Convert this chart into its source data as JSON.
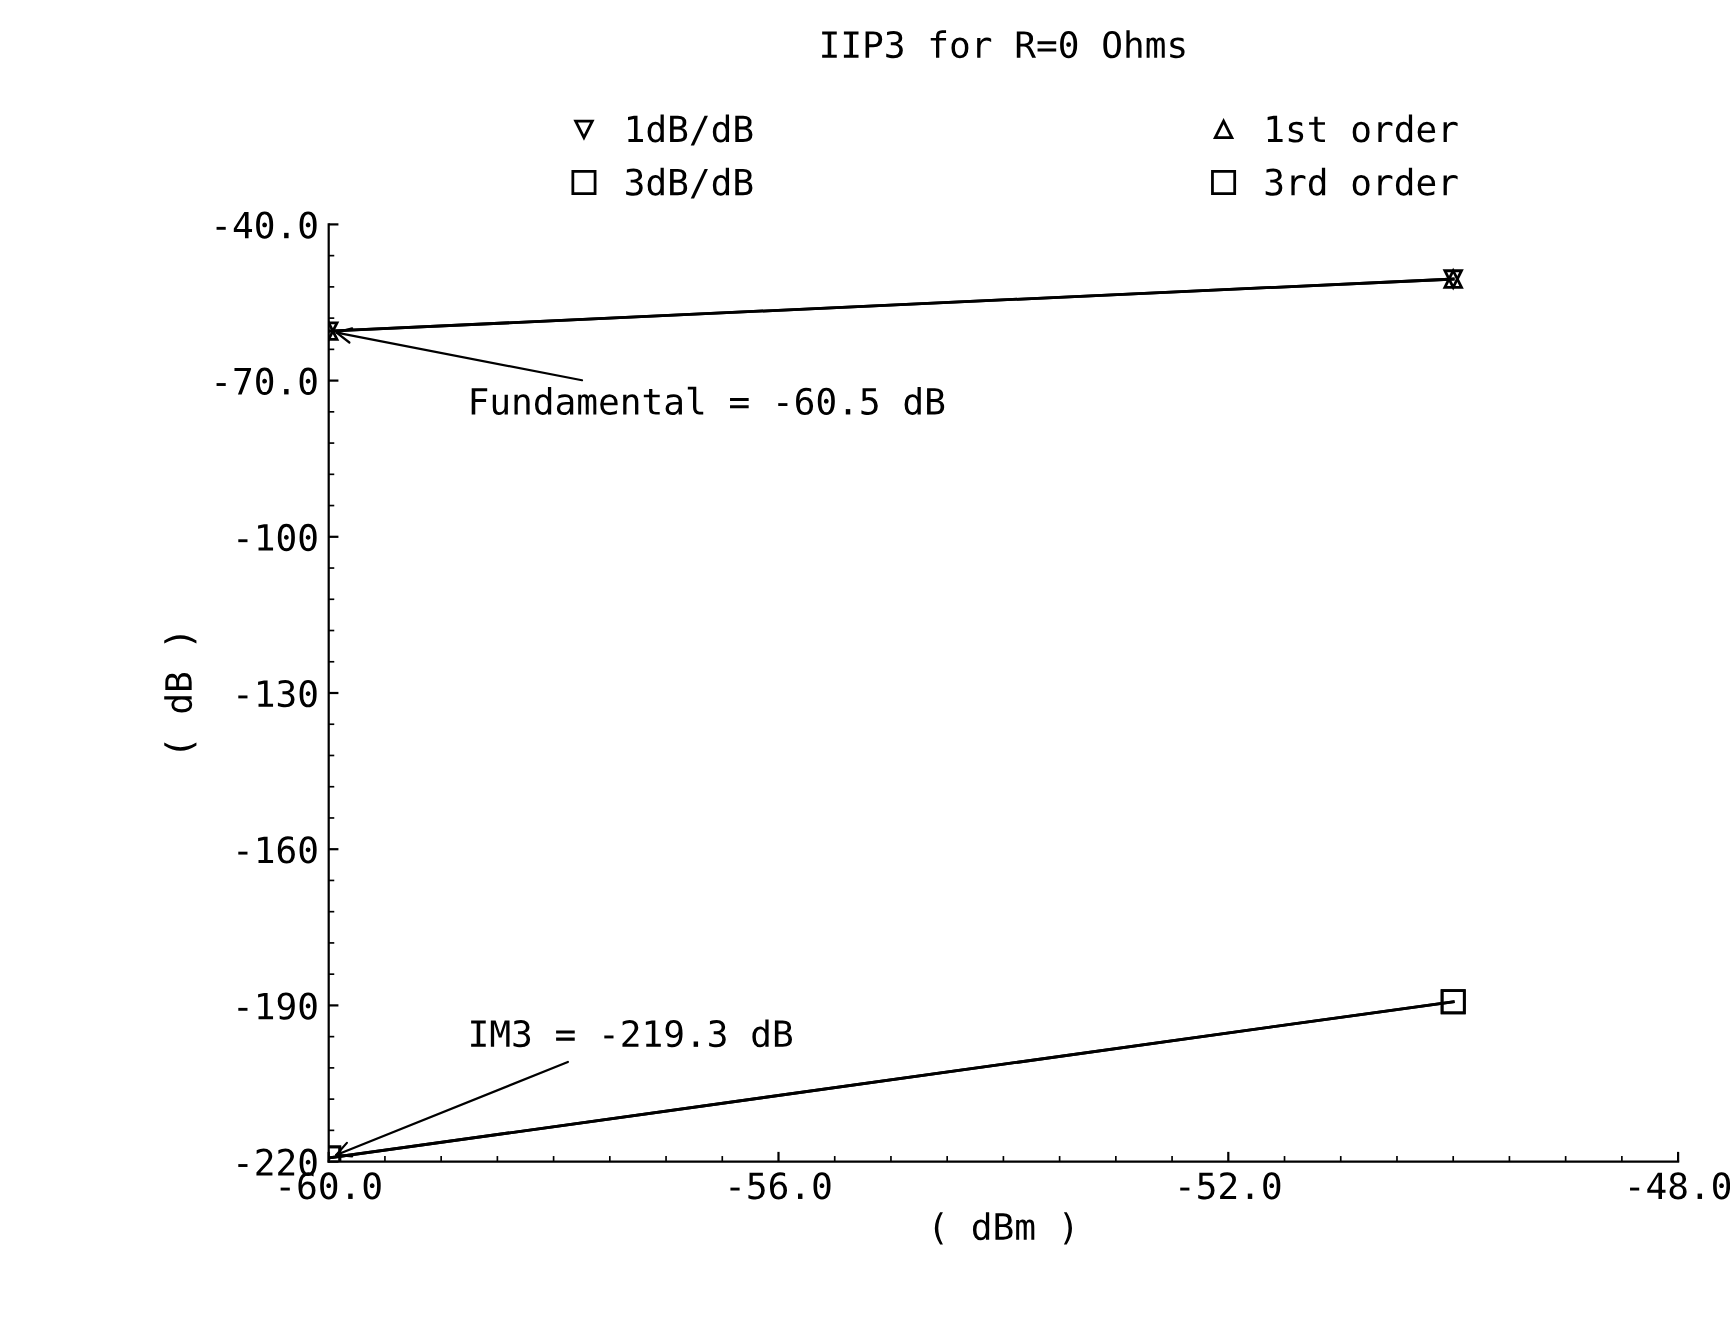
{
  "chart_data": {
    "type": "line",
    "title": "IIP3 for R=0 Ohms",
    "xlabel": "( dBm )",
    "ylabel": "( dB )",
    "x": [
      -60,
      -50
    ],
    "series": [
      {
        "name": "1dB/dB",
        "color": "#000000",
        "values": [
          -60.5,
          -50.5
        ],
        "marker": "triangle"
      },
      {
        "name": "3dB/dB",
        "color": "#000000",
        "values": [
          -219.3,
          -189.3
        ],
        "marker": "square"
      },
      {
        "name": "1st order",
        "color": "#000000",
        "values": [
          -60.5,
          -50.5
        ],
        "marker": "triangle"
      },
      {
        "name": "3rd order",
        "color": "#000000",
        "values": [
          -219.3,
          -189.3
        ],
        "marker": "square"
      }
    ],
    "xlim": [
      -60,
      -48
    ],
    "xticks": [
      {
        "value": -60,
        "label": "-60.0"
      },
      {
        "value": -56,
        "label": "-56.0"
      },
      {
        "value": -52,
        "label": "-52.0"
      },
      {
        "value": -48,
        "label": "-48.0"
      }
    ],
    "ylim": [
      -220,
      -40
    ],
    "yticks": [
      {
        "value": -40,
        "label": "-40.0"
      },
      {
        "value": -70,
        "label": "-70.0"
      },
      -100,
      -130,
      -160,
      -190,
      -220
    ],
    "annotations": [
      {
        "text": "Fundamental = -60.5 dB",
        "x": -60,
        "y": -60.5
      },
      {
        "text": "IM3 = -219.3 dB",
        "x": -60,
        "y": -219.3
      }
    ],
    "grid": false,
    "legend": "top",
    "line_style": "solid"
  }
}
